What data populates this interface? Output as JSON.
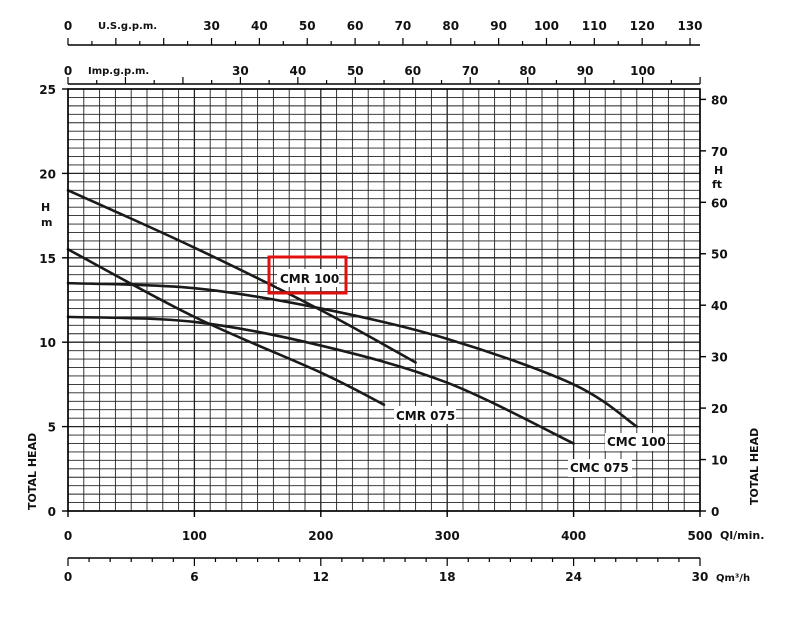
{
  "chart_data": {
    "type": "line",
    "xlabel": "Ql/min.",
    "x_secondary_label": "Qm³/h",
    "x_top_usgpm_label": "U.S.g.p.m.",
    "x_top_impgpm_label": "Imp.g.p.m.",
    "ylabel": "TOTAL HEAD",
    "ylabel_right": "TOTAL HEAD",
    "y_unit_left": [
      "H",
      "m"
    ],
    "y_unit_right": [
      "H",
      "ft"
    ],
    "xlim": [
      0,
      500
    ],
    "ylim": [
      0,
      25
    ],
    "grid": true,
    "x_ticks": [
      "0",
      "100",
      "200",
      "300",
      "400",
      "500"
    ],
    "x_m3h_ticks": [
      "0",
      "6",
      "12",
      "18",
      "24",
      "30"
    ],
    "x_usgpm_ticks": [
      "0",
      "30",
      "40",
      "50",
      "60",
      "70",
      "80",
      "90",
      "100",
      "110",
      "120",
      "130"
    ],
    "x_impgpm_ticks": [
      "0",
      "30",
      "40",
      "50",
      "60",
      "70",
      "80",
      "90",
      "100"
    ],
    "y_ticks": [
      "0",
      "5",
      "10",
      "15",
      "20",
      "25"
    ],
    "y_ft_ticks": [
      "0",
      "10",
      "20",
      "30",
      "40",
      "50",
      "60",
      "70",
      "80"
    ],
    "series": [
      {
        "name": "CMR 100",
        "x": [
          0,
          100,
          200,
          275
        ],
        "y": [
          19,
          15.6,
          11.9,
          8.8
        ]
      },
      {
        "name": "CMR 075",
        "x": [
          0,
          100,
          200,
          250
        ],
        "y": [
          15.5,
          11.5,
          8.2,
          6.3
        ]
      },
      {
        "name": "CMC 100",
        "x": [
          0,
          100,
          200,
          300,
          400,
          450
        ],
        "y": [
          13.5,
          13.2,
          12.0,
          10.2,
          7.5,
          5.0
        ]
      },
      {
        "name": "CMC 075",
        "x": [
          0,
          100,
          200,
          300,
          400
        ],
        "y": [
          11.5,
          11.2,
          9.8,
          7.6,
          4.0
        ]
      }
    ],
    "highlight_color": "#e01010",
    "line_color": "#1a1a1a",
    "grid_color": "#222222"
  }
}
